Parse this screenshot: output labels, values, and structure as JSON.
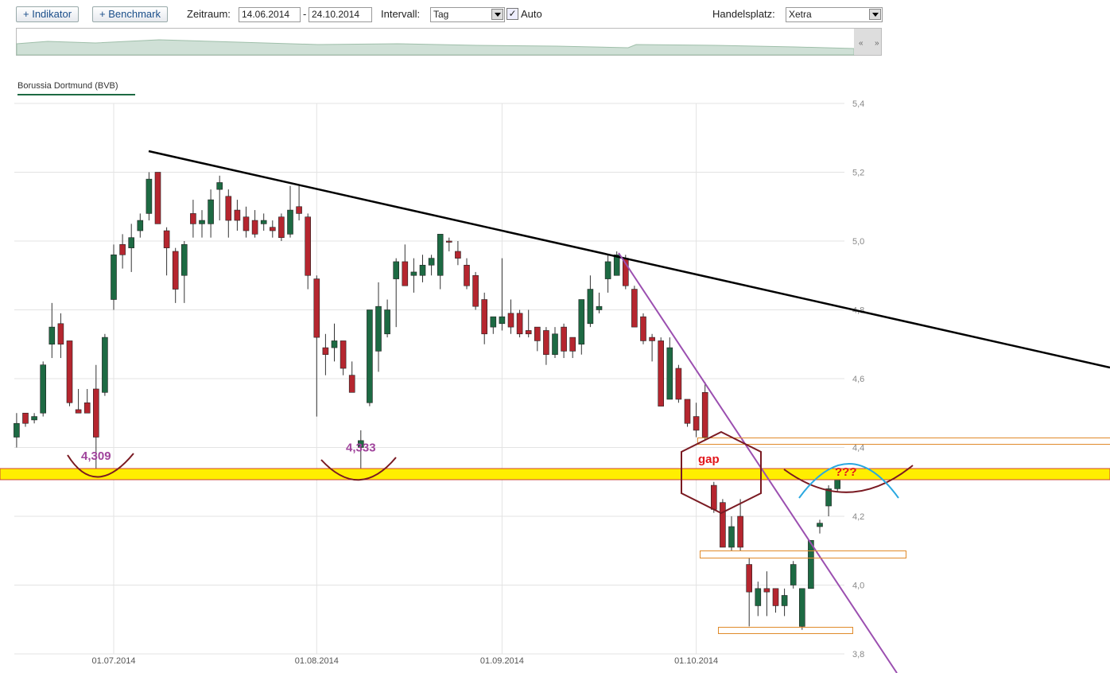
{
  "toolbar": {
    "indicator_button": "+ Indikator",
    "benchmark_button": "+ Benchmark",
    "period_label": "Zeitraum:",
    "date_from": "14.06.2014",
    "date_separator": "-",
    "date_to": "24.10.2014",
    "interval_label": "Intervall:",
    "interval": "Tag",
    "auto_label": "Auto",
    "exchange_label": "Handelsplatz:",
    "exchange": "Xetra"
  },
  "chart_data": {
    "type": "candlestick",
    "series_name": "Borussia Dortmund (BVB)",
    "categories": [
      null,
      null,
      null,
      null,
      null,
      null,
      null,
      null,
      null,
      null,
      null,
      "01.07.2014",
      null,
      null,
      null,
      null,
      null,
      null,
      null,
      null,
      null,
      null,
      null,
      null,
      null,
      null,
      null,
      null,
      null,
      null,
      null,
      null,
      null,
      null,
      "01.08.2014",
      null,
      null,
      null,
      null,
      null,
      null,
      null,
      null,
      null,
      null,
      null,
      null,
      null,
      null,
      null,
      null,
      null,
      null,
      null,
      null,
      "01.09.2014",
      null,
      null,
      null,
      null,
      null,
      null,
      null,
      null,
      null,
      null,
      null,
      null,
      null,
      null,
      null,
      null,
      null,
      null,
      null,
      null,
      null,
      "01.10.2014",
      null,
      null,
      null,
      null,
      null,
      null,
      null,
      null,
      null,
      null,
      null,
      null,
      null,
      null,
      null,
      null
    ],
    "open": [
      4.43,
      4.5,
      4.48,
      4.5,
      4.7,
      4.76,
      4.71,
      4.51,
      4.53,
      4.57,
      4.56,
      4.83,
      4.99,
      4.98,
      5.03,
      5.08,
      5.2,
      5.03,
      4.97,
      4.9,
      5.08,
      5.05,
      5.05,
      5.15,
      5.13,
      5.09,
      5.07,
      5.06,
      5.05,
      5.04,
      5.07,
      5.02,
      5.1,
      5.07,
      4.89,
      4.69,
      4.69,
      4.71,
      4.61,
      4.4,
      4.53,
      4.68,
      4.73,
      4.89,
      4.94,
      4.9,
      4.9,
      4.93,
      4.9,
      5.0,
      4.97,
      4.93,
      4.9,
      4.83,
      4.75,
      4.76,
      4.79,
      4.79,
      4.74,
      4.75,
      4.74,
      4.67,
      4.75,
      4.72,
      4.7,
      4.76,
      4.8,
      4.89,
      4.9,
      4.95,
      4.86,
      4.78,
      4.72,
      4.71,
      4.54,
      4.63,
      4.54,
      4.49,
      4.56,
      4.29,
      4.24,
      4.11,
      4.2,
      4.06,
      3.94,
      3.99,
      3.99,
      3.94,
      4.0,
      3.88,
      3.99,
      4.17,
      4.23,
      4.28
    ],
    "high": [
      4.5,
      4.5,
      4.5,
      4.65,
      4.82,
      4.79,
      4.71,
      4.57,
      4.57,
      4.64,
      4.73,
      4.99,
      5.02,
      5.05,
      5.08,
      5.2,
      5.2,
      5.04,
      4.98,
      5.0,
      5.12,
      5.09,
      5.15,
      5.19,
      5.15,
      5.12,
      5.1,
      5.09,
      5.08,
      5.06,
      5.08,
      5.16,
      5.16,
      5.08,
      4.9,
      4.73,
      4.76,
      4.71,
      4.65,
      4.45,
      4.8,
      4.88,
      4.83,
      4.95,
      4.99,
      4.95,
      4.96,
      4.96,
      5.02,
      5.01,
      5.0,
      4.95,
      4.91,
      4.85,
      4.78,
      4.95,
      4.83,
      4.8,
      4.8,
      4.75,
      4.75,
      4.75,
      4.76,
      4.72,
      4.83,
      4.9,
      4.85,
      4.96,
      4.97,
      4.96,
      4.87,
      4.79,
      4.73,
      4.72,
      4.72,
      4.64,
      4.54,
      4.53,
      4.59,
      4.3,
      4.25,
      4.2,
      4.25,
      4.08,
      4.01,
      4.04,
      3.99,
      3.99,
      4.07,
      3.99,
      4.13,
      4.19,
      4.29,
      4.32
    ],
    "low": [
      4.4,
      4.46,
      4.47,
      4.49,
      4.66,
      4.66,
      4.52,
      4.5,
      4.5,
      4.309,
      4.55,
      4.8,
      4.92,
      4.91,
      5.01,
      5.06,
      5.05,
      4.9,
      4.82,
      4.82,
      5.01,
      5.01,
      5.01,
      5.06,
      5.01,
      5.03,
      5.01,
      5.01,
      5.03,
      5.01,
      5.0,
      5.01,
      5.06,
      4.86,
      4.49,
      4.61,
      4.65,
      4.61,
      4.56,
      4.333,
      4.52,
      4.62,
      4.72,
      4.75,
      4.87,
      4.85,
      4.88,
      4.9,
      4.86,
      4.97,
      4.93,
      4.86,
      4.8,
      4.7,
      4.73,
      4.74,
      4.73,
      4.72,
      4.72,
      4.68,
      4.64,
      4.66,
      4.66,
      4.66,
      4.67,
      4.75,
      4.79,
      4.85,
      4.9,
      4.86,
      4.75,
      4.7,
      4.65,
      4.52,
      4.54,
      4.53,
      4.46,
      4.43,
      4.42,
      4.21,
      4.11,
      4.1,
      4.1,
      3.88,
      3.91,
      3.91,
      3.92,
      3.91,
      3.99,
      3.87,
      3.99,
      4.15,
      4.2,
      4.27
    ],
    "close": [
      4.47,
      4.47,
      4.49,
      4.64,
      4.75,
      4.7,
      4.53,
      4.5,
      4.5,
      4.43,
      4.72,
      4.96,
      4.96,
      5.01,
      5.06,
      5.18,
      5.05,
      4.98,
      4.86,
      4.99,
      5.05,
      5.06,
      5.12,
      5.17,
      5.06,
      5.06,
      5.03,
      5.02,
      5.06,
      5.03,
      5.01,
      5.09,
      5.08,
      4.9,
      4.72,
      4.67,
      4.71,
      4.63,
      4.56,
      4.42,
      4.8,
      4.81,
      4.8,
      4.94,
      4.87,
      4.91,
      4.93,
      4.95,
      5.02,
      5.0,
      4.95,
      4.87,
      4.81,
      4.73,
      4.78,
      4.78,
      4.75,
      4.73,
      4.73,
      4.71,
      4.67,
      4.73,
      4.68,
      4.68,
      4.83,
      4.86,
      4.81,
      4.94,
      4.96,
      4.87,
      4.75,
      4.71,
      4.71,
      4.52,
      4.69,
      4.54,
      4.47,
      4.45,
      4.43,
      4.22,
      4.11,
      4.17,
      4.11,
      3.98,
      3.99,
      3.98,
      3.94,
      3.97,
      4.06,
      3.99,
      4.13,
      4.18,
      4.28,
      4.31
    ],
    "up_color": "#1d6a43",
    "down_color": "#b5262f",
    "ylim": [
      3.8,
      5.4
    ],
    "yticks": [
      {
        "value": 3.8,
        "label": "3,8"
      },
      {
        "value": 4.0,
        "label": "4,0"
      },
      {
        "value": 4.2,
        "label": "4,2"
      },
      {
        "value": 4.4,
        "label": "4,4"
      },
      {
        "value": 4.6,
        "label": "4,6"
      },
      {
        "value": 4.8,
        "label": "4,8"
      },
      {
        "value": 5.0,
        "label": "5,0"
      },
      {
        "value": 5.2,
        "label": "5,2"
      },
      {
        "value": 5.4,
        "label": "5,4"
      }
    ],
    "grid": true,
    "low_annotations": [
      {
        "value": 4.309,
        "label": "4,309"
      },
      {
        "value": 4.333,
        "label": "4,333"
      }
    ],
    "notes": [
      "gap",
      "???"
    ]
  }
}
